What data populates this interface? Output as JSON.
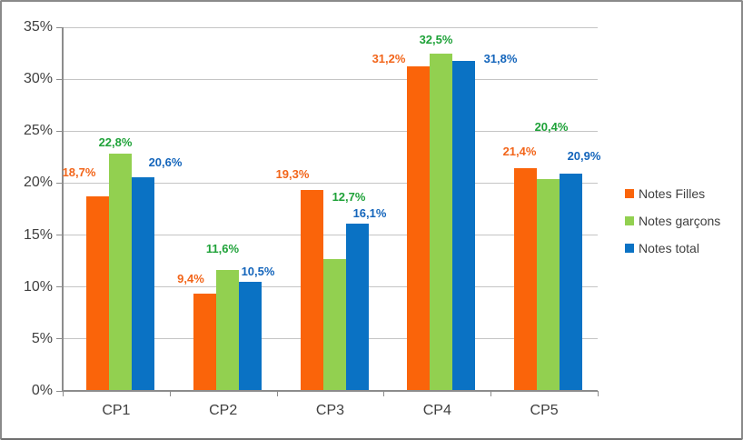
{
  "chart_data": {
    "type": "bar",
    "title": "",
    "categories": [
      "CP1",
      "CP2",
      "CP3",
      "CP4",
      "CP5"
    ],
    "series": [
      {
        "name": "Notes Filles",
        "color": "#FA640A",
        "label_color": "#F2651A",
        "values": [
          18.7,
          9.4,
          19.3,
          31.2,
          21.4
        ],
        "labels": [
          "18,7%",
          "9,4%",
          "19,3%",
          "31,2%",
          "21,4%"
        ]
      },
      {
        "name": "Notes garçons",
        "color": "#92D050",
        "label_color": "#1FA239",
        "values": [
          22.8,
          11.6,
          12.7,
          32.5,
          20.4
        ],
        "labels": [
          "22,8%",
          "11,6%",
          "12,7%",
          "32,5%",
          "20,4%"
        ]
      },
      {
        "name": "Notes total",
        "color": "#0A72C4",
        "label_color": "#1465BB",
        "values": [
          20.6,
          10.5,
          16.1,
          31.8,
          20.9
        ],
        "labels": [
          "20,6%",
          "10,5%",
          "16,1%",
          "31,8%",
          "20,9%"
        ]
      }
    ],
    "y_axis": {
      "min": 0,
      "max": 35,
      "step": 5,
      "tick_labels": [
        "0%",
        "5%",
        "10%",
        "15%",
        "20%",
        "25%",
        "30%",
        "35%"
      ]
    },
    "legend": {
      "position": "right"
    },
    "grid": true,
    "colors": {
      "axis_text": "#3F3F3F",
      "gridline": "#C5C5C5",
      "axis_line": "#8C8C8C",
      "frame_border": "#8A8A8A",
      "background": "#FFFFFF"
    }
  }
}
